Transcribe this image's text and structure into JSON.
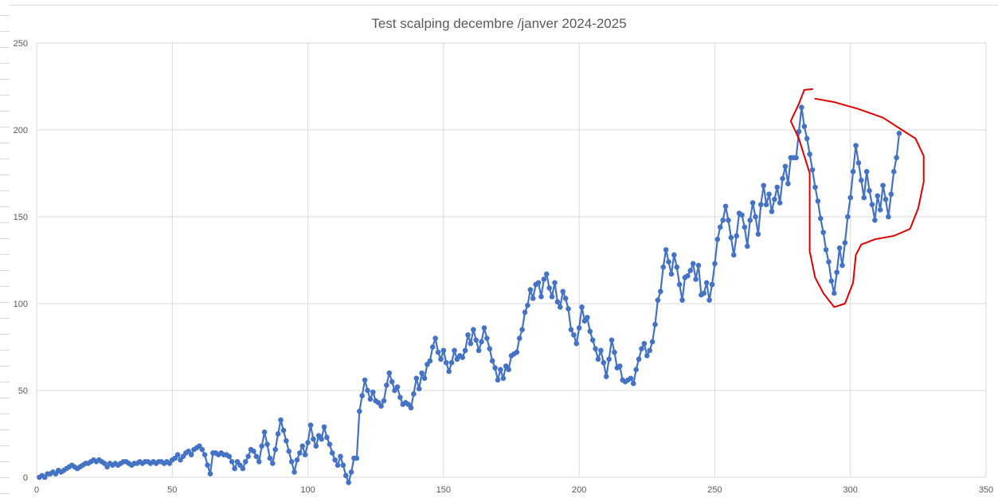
{
  "chart_data": {
    "type": "line",
    "title": "Test scalping decembre /janver 2024-2025",
    "xlabel": "",
    "ylabel": "",
    "xlim": [
      0,
      350
    ],
    "ylim": [
      0,
      250
    ],
    "x_ticks": [
      "0",
      "50",
      "100",
      "150",
      "200",
      "250",
      "300",
      "350"
    ],
    "y_ticks": [
      "0",
      "50",
      "100",
      "150",
      "200",
      "250"
    ],
    "grid": true,
    "legend": "none",
    "series": [
      {
        "color": "#4472c4",
        "x_start": 1,
        "x_step": 1,
        "values": [
          0,
          1,
          0,
          2,
          2,
          3,
          2,
          4,
          3,
          4,
          5,
          6,
          7,
          6,
          5,
          6,
          7,
          8,
          8,
          9,
          10,
          9,
          10,
          9,
          8,
          6,
          8,
          7,
          8,
          7,
          8,
          9,
          9,
          8,
          7,
          8,
          8,
          9,
          8,
          9,
          9,
          8,
          9,
          8,
          9,
          9,
          8,
          9,
          8,
          10,
          11,
          13,
          10,
          12,
          14,
          15,
          13,
          16,
          17,
          18,
          16,
          13,
          7,
          2,
          14,
          14,
          13,
          14,
          13,
          13,
          12,
          9,
          5,
          9,
          7,
          5,
          9,
          12,
          16,
          15,
          12,
          9,
          18,
          26,
          19,
          11,
          8,
          16,
          25,
          33,
          27,
          21,
          15,
          9,
          3,
          10,
          14,
          18,
          13,
          20,
          30,
          22,
          18,
          24,
          22,
          29,
          23,
          19,
          14,
          10,
          7,
          12,
          7,
          1,
          -3,
          3,
          11,
          11,
          38,
          47,
          56,
          50,
          45,
          49,
          44,
          43,
          41,
          44,
          53,
          60,
          55,
          50,
          52,
          46,
          42,
          43,
          42,
          40,
          48,
          57,
          51,
          60,
          57,
          65,
          67,
          75,
          80,
          72,
          68,
          73,
          66,
          61,
          66,
          73,
          68,
          70,
          69,
          73,
          82,
          77,
          85,
          79,
          73,
          78,
          86,
          80,
          74,
          67,
          63,
          56,
          62,
          57,
          64,
          62,
          70,
          71,
          72,
          80,
          85,
          95,
          99,
          108,
          103,
          111,
          112,
          104,
          114,
          117,
          109,
          104,
          112,
          101,
          98,
          107,
          103,
          97,
          85,
          82,
          77,
          86,
          98,
          90,
          92,
          84,
          79,
          74,
          68,
          73,
          66,
          58,
          68,
          79,
          72,
          63,
          64,
          56,
          55,
          56,
          57,
          54,
          62,
          68,
          74,
          77,
          70,
          73,
          78,
          88,
          102,
          107,
          121,
          131,
          124,
          117,
          128,
          121,
          111,
          102,
          115,
          116,
          119,
          123,
          114,
          122,
          105,
          106,
          112,
          102,
          111,
          123,
          137,
          144,
          148,
          156,
          148,
          138,
          128,
          139,
          152,
          151,
          144,
          133,
          148,
          158,
          150,
          140,
          157,
          168,
          157,
          163,
          153,
          160,
          167,
          158,
          172,
          179,
          169,
          184,
          184,
          184,
          199,
          213,
          202,
          195,
          186,
          177,
          167,
          159,
          149,
          141,
          131,
          124,
          113,
          106,
          118,
          132,
          122,
          135,
          150,
          161,
          176,
          191,
          181,
          171,
          161,
          176,
          165,
          157,
          148,
          162,
          154,
          168,
          160,
          150,
          163,
          176,
          184,
          198
        ]
      }
    ],
    "annotations": [
      {
        "type": "freehand-circle",
        "color": "#e00000"
      }
    ]
  }
}
